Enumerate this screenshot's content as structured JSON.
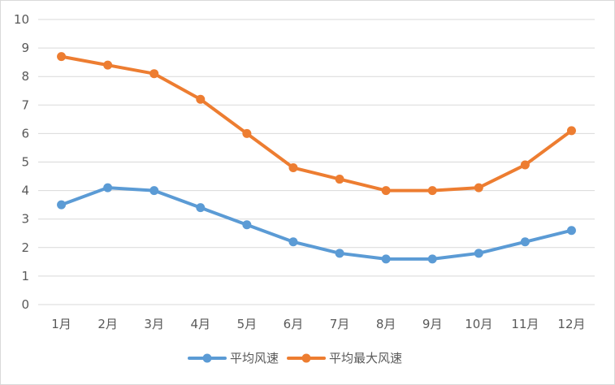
{
  "chart_data": {
    "type": "line",
    "categories": [
      "1月",
      "2月",
      "3月",
      "4月",
      "5月",
      "6月",
      "7月",
      "8月",
      "9月",
      "10月",
      "11月",
      "12月"
    ],
    "series": [
      {
        "name": "平均风速",
        "color": "#5b9bd5",
        "values": [
          3.5,
          4.1,
          4.0,
          3.4,
          2.8,
          2.2,
          1.8,
          1.6,
          1.6,
          1.8,
          2.2,
          2.6
        ]
      },
      {
        "name": "平均最大风速",
        "color": "#ed7d31",
        "values": [
          8.7,
          8.4,
          8.1,
          7.2,
          6.0,
          4.8,
          4.4,
          4.0,
          4.0,
          4.1,
          4.9,
          6.1
        ]
      }
    ],
    "ylim": [
      0,
      10
    ],
    "yticks": [
      "0",
      "1",
      "2",
      "3",
      "4",
      "5",
      "6",
      "7",
      "8",
      "9",
      "10"
    ],
    "grid": true,
    "legend": "bottom",
    "title": "",
    "xlabel": "",
    "ylabel": ""
  }
}
